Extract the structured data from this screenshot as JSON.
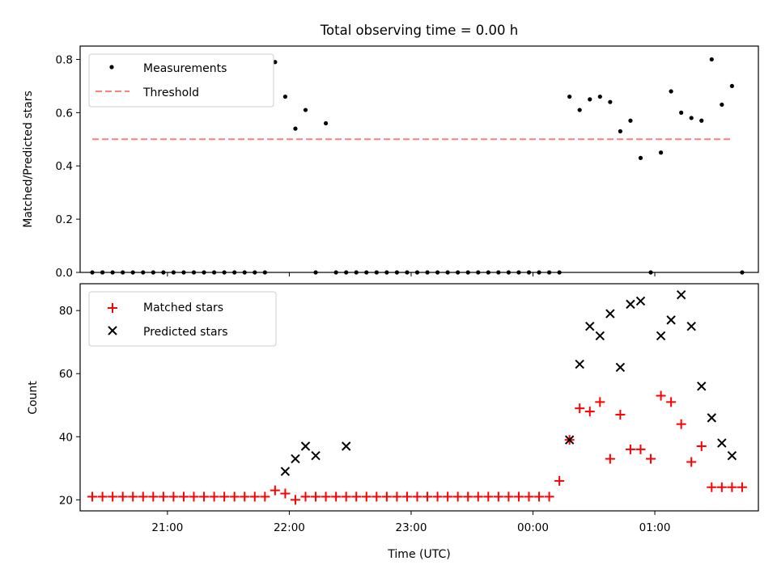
{
  "figure": {
    "title": "Total observing time = 0.00 h"
  },
  "chart_data": [
    {
      "type": "scatter",
      "panel": "top",
      "title": "Total observing time = 0.00 h",
      "xlabel": "",
      "ylabel": "Matched/Predicted stars",
      "ylim": [
        0,
        0.85
      ],
      "yticks": [
        0.0,
        0.2,
        0.4,
        0.6,
        0.8
      ],
      "ytick_labels": [
        "0.0",
        "0.2",
        "0.4",
        "0.6",
        "0.8"
      ],
      "legend_position": "upper-left",
      "series": [
        {
          "name": "Measurements",
          "kind": "points",
          "color": "#000000",
          "x": [
            "20:23",
            "20:28",
            "20:33",
            "20:38",
            "20:43",
            "20:48",
            "20:53",
            "20:58",
            "21:03",
            "21:08",
            "21:13",
            "21:18",
            "21:23",
            "21:28",
            "21:33",
            "21:38",
            "21:43",
            "21:48",
            "21:53",
            "21:58",
            "22:03",
            "22:08",
            "22:13",
            "22:18",
            "22:23",
            "22:28",
            "22:33",
            "22:38",
            "22:43",
            "22:48",
            "22:53",
            "22:58",
            "23:03",
            "23:08",
            "23:13",
            "23:18",
            "23:23",
            "23:28",
            "23:33",
            "23:38",
            "23:43",
            "23:48",
            "23:53",
            "23:58",
            "00:03",
            "00:08",
            "00:13",
            "00:18",
            "00:23",
            "00:28",
            "00:33",
            "00:38",
            "00:43",
            "00:48",
            "00:53",
            "00:58",
            "01:03",
            "01:08",
            "01:13",
            "01:18",
            "01:23",
            "01:28",
            "01:33",
            "01:38",
            "01:43"
          ],
          "y": [
            0,
            0,
            0,
            0,
            0,
            0,
            0,
            0,
            0,
            0,
            0,
            0,
            0,
            0,
            0,
            0,
            0,
            0,
            0.79,
            0.66,
            0.54,
            0.61,
            0,
            0.56,
            0,
            0,
            0,
            0,
            0,
            0,
            0,
            0,
            0,
            0,
            0,
            0,
            0,
            0,
            0,
            0,
            0,
            0,
            0,
            0,
            0,
            0,
            0,
            0.66,
            0.61,
            0.65,
            0.66,
            0.64,
            0.53,
            0.57,
            0.43,
            0,
            0.45,
            0.68,
            0.6,
            0.58,
            0.57,
            0.8,
            0.63,
            0.7,
            0
          ]
        },
        {
          "name": "Threshold",
          "kind": "dashed-line",
          "color": "#ff7f7f",
          "x": [
            "20:23",
            "01:38"
          ],
          "y": [
            0.5,
            0.5
          ]
        }
      ]
    },
    {
      "type": "scatter",
      "panel": "bottom",
      "xlabel": "Time (UTC)",
      "ylabel": "Count",
      "ylim": [
        16.5,
        88.5
      ],
      "yticks": [
        20,
        40,
        60,
        80
      ],
      "ytick_labels": [
        "20",
        "40",
        "60",
        "80"
      ],
      "legend_position": "upper-left",
      "series": [
        {
          "name": "Matched stars",
          "marker": "plus",
          "color": "#ff0000",
          "x": [
            "20:23",
            "20:28",
            "20:33",
            "20:38",
            "20:43",
            "20:48",
            "20:53",
            "20:58",
            "21:03",
            "21:08",
            "21:13",
            "21:18",
            "21:23",
            "21:28",
            "21:33",
            "21:38",
            "21:43",
            "21:48",
            "21:53",
            "21:58",
            "22:03",
            "22:08",
            "22:13",
            "22:18",
            "22:23",
            "22:28",
            "22:33",
            "22:38",
            "22:43",
            "22:48",
            "22:53",
            "22:58",
            "23:03",
            "23:08",
            "23:13",
            "23:18",
            "23:23",
            "23:28",
            "23:33",
            "23:38",
            "23:43",
            "23:48",
            "23:53",
            "23:58",
            "00:03",
            "00:08",
            "00:13",
            "00:18",
            "00:23",
            "00:28",
            "00:33",
            "00:38",
            "00:43",
            "00:48",
            "00:53",
            "00:58",
            "01:03",
            "01:08",
            "01:13",
            "01:18",
            "01:23",
            "01:28",
            "01:33",
            "01:38",
            "01:43"
          ],
          "y": [
            21,
            21,
            21,
            21,
            21,
            21,
            21,
            21,
            21,
            21,
            21,
            21,
            21,
            21,
            21,
            21,
            21,
            21,
            23,
            22,
            20,
            21,
            21,
            21,
            21,
            21,
            21,
            21,
            21,
            21,
            21,
            21,
            21,
            21,
            21,
            21,
            21,
            21,
            21,
            21,
            21,
            21,
            21,
            21,
            21,
            21,
            26,
            39,
            49,
            48,
            51,
            33,
            47,
            36,
            36,
            33,
            53,
            51,
            44,
            32,
            37,
            24,
            24,
            24,
            24
          ]
        },
        {
          "name": "Predicted stars",
          "marker": "x",
          "color": "#000000",
          "x": [
            "21:58",
            "22:03",
            "22:08",
            "22:13",
            "22:28",
            "00:18",
            "00:23",
            "00:28",
            "00:33",
            "00:38",
            "00:43",
            "00:48",
            "00:53",
            "01:03",
            "01:08",
            "01:13",
            "01:18",
            "01:23",
            "01:28",
            "01:33",
            "01:38"
          ],
          "y": [
            29,
            33,
            37,
            34,
            37,
            39,
            63,
            75,
            72,
            79,
            62,
            82,
            83,
            72,
            77,
            85,
            75,
            56,
            46,
            38,
            34
          ]
        }
      ]
    }
  ],
  "x_axis": {
    "domain": [
      "20:17",
      "01:51"
    ],
    "ticks": [
      "21:00",
      "22:00",
      "23:00",
      "00:00",
      "01:00"
    ],
    "tick_labels": [
      "21:00",
      "22:00",
      "23:00",
      "00:00",
      "01:00"
    ]
  }
}
